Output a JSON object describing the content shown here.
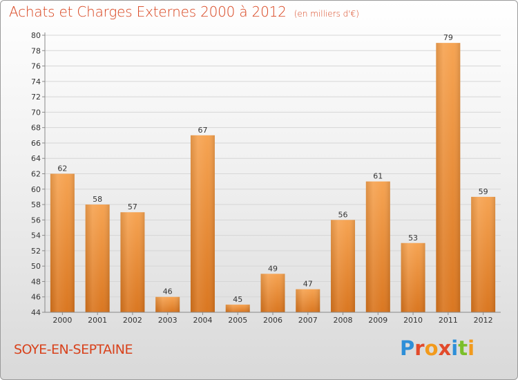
{
  "header": {
    "title": "Achats et Charges Externes 2000 à 2012",
    "unit": "(en milliers d'€)"
  },
  "footer": {
    "commune": "SOYE-EN-SEPTAINE",
    "logo_text": "Proxiti",
    "logo_colors": [
      "#2e8fd8",
      "#e24a2b",
      "#f29a1c",
      "#e24a2b",
      "#2e8fd8",
      "#7bbf2a",
      "#f29a1c"
    ]
  },
  "colors": {
    "bar_top": "#f6a24f",
    "bar_bottom": "#d9741c",
    "accent": "#d8421c"
  },
  "chart_data": {
    "type": "bar",
    "title": "Achats et Charges Externes 2000 à 2012",
    "categories": [
      "2000",
      "2001",
      "2002",
      "2003",
      "2004",
      "2005",
      "2006",
      "2007",
      "2008",
      "2009",
      "2010",
      "2011",
      "2012"
    ],
    "values": [
      62,
      58,
      57,
      46,
      67,
      45,
      49,
      47,
      56,
      61,
      53,
      79,
      59
    ],
    "ylim": [
      44,
      80
    ],
    "yticks": [
      44,
      46,
      48,
      50,
      52,
      54,
      56,
      58,
      60,
      62,
      64,
      66,
      68,
      70,
      72,
      74,
      76,
      78,
      80
    ],
    "grid": true,
    "legend": "none"
  }
}
